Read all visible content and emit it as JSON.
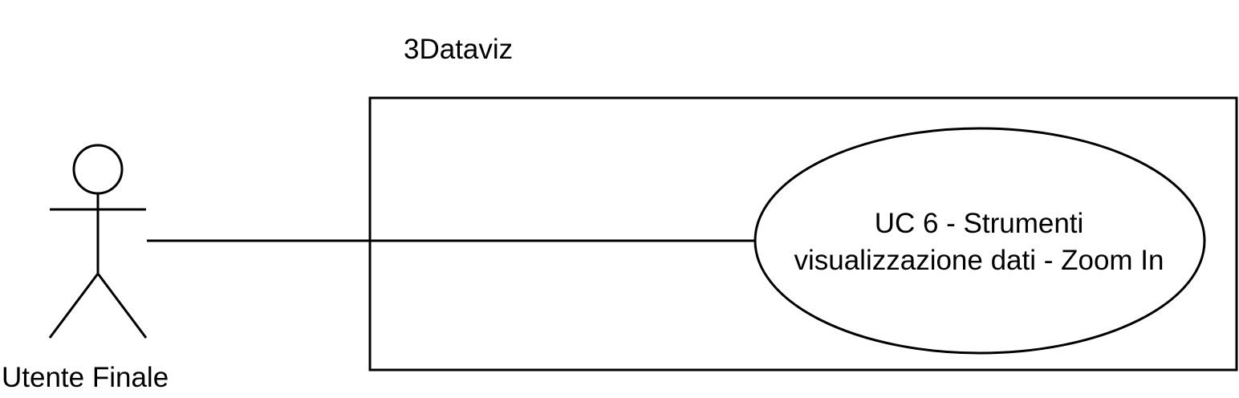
{
  "system": {
    "title": "3Dataviz"
  },
  "actor": {
    "name": "Utente Finale",
    "icon": "stick-figure-actor-icon"
  },
  "use_case": {
    "line1": "UC 6 - Strumenti",
    "line2": "visualizzazione dati - Zoom In"
  },
  "colors": {
    "stroke": "#000000",
    "background": "#ffffff"
  }
}
